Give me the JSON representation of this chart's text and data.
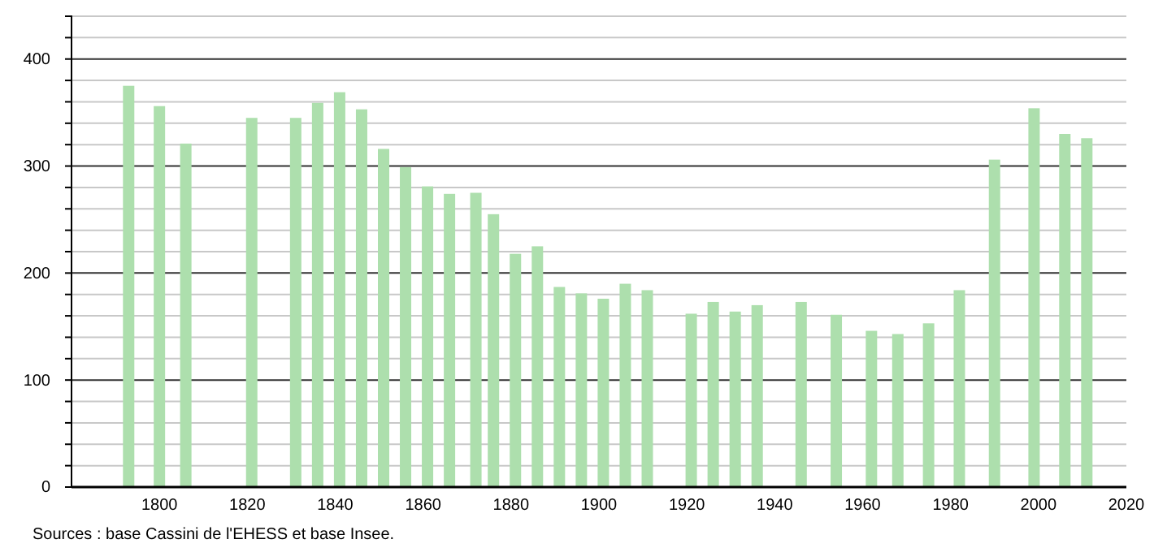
{
  "chart_data": {
    "type": "bar",
    "x": [
      1793,
      1800,
      1806,
      1821,
      1831,
      1836,
      1841,
      1846,
      1851,
      1856,
      1861,
      1866,
      1872,
      1876,
      1881,
      1886,
      1891,
      1896,
      1901,
      1906,
      1911,
      1921,
      1926,
      1931,
      1936,
      1946,
      1954,
      1962,
      1968,
      1975,
      1982,
      1990,
      1999,
      2006,
      2011
    ],
    "values": [
      375,
      356,
      321,
      345,
      345,
      359,
      369,
      353,
      316,
      299,
      281,
      274,
      275,
      255,
      218,
      225,
      187,
      181,
      176,
      190,
      184,
      162,
      173,
      164,
      170,
      173,
      161,
      146,
      143,
      153,
      184,
      306,
      354,
      330,
      326
    ],
    "color": "#addfad",
    "xlim": [
      1780,
      2020
    ],
    "xticks": [
      1800,
      1820,
      1840,
      1860,
      1880,
      1900,
      1920,
      1940,
      1960,
      1980,
      2000,
      2020
    ],
    "ylim": [
      0,
      440
    ],
    "yticks": [
      0,
      {
        "value": 20,
        "label": null
      },
      {
        "value": 40,
        "label": null
      },
      {
        "value": 60,
        "label": null
      },
      {
        "value": 80,
        "label": null
      },
      100,
      {
        "value": 120,
        "label": null
      },
      {
        "value": 140,
        "label": null
      },
      {
        "value": 160,
        "label": null
      },
      {
        "value": 180,
        "label": null
      },
      200,
      {
        "value": 220,
        "label": null
      },
      {
        "value": 240,
        "label": null
      },
      {
        "value": 260,
        "label": null
      },
      {
        "value": 280,
        "label": null
      },
      300,
      {
        "value": 320,
        "label": null
      },
      {
        "value": 340,
        "label": null
      },
      {
        "value": 360,
        "label": null
      },
      {
        "value": 380,
        "label": null
      },
      400,
      {
        "value": 420,
        "label": null
      },
      {
        "value": 440,
        "label": null
      }
    ],
    "grid": "y",
    "annotations": [
      "Sources : base Cassini de l'EHESS et base Insee."
    ]
  }
}
